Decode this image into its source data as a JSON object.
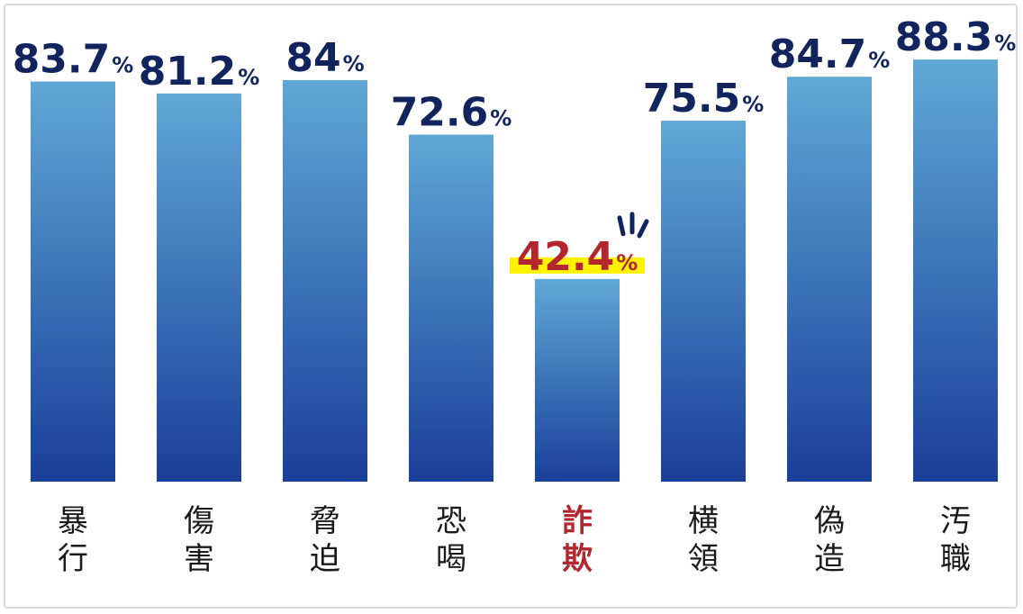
{
  "chart_data": {
    "type": "bar",
    "categories": [
      "暴行",
      "傷害",
      "脅迫",
      "恐喝",
      "詐欺",
      "横領",
      "偽造",
      "汚職"
    ],
    "values": [
      83.7,
      81.2,
      84,
      72.6,
      42.4,
      75.5,
      84.7,
      88.3
    ],
    "value_labels": [
      "83.7",
      "81.2",
      "84",
      "72.6",
      "42.4",
      "75.5",
      "84.7",
      "88.3"
    ],
    "unit": "%",
    "highlight_index": 4,
    "ylim": [
      0,
      100
    ],
    "grid": false,
    "title": "",
    "xlabel": "",
    "ylabel": ""
  },
  "colors": {
    "bar_top": "#5fa8d6",
    "bar_bottom": "#1a3f9a",
    "value_text": "#11245e",
    "category_text": "#1a1a1a",
    "highlight_text": "#b3262e",
    "highlight_mark": "#fff200",
    "burst": "#11245e"
  }
}
